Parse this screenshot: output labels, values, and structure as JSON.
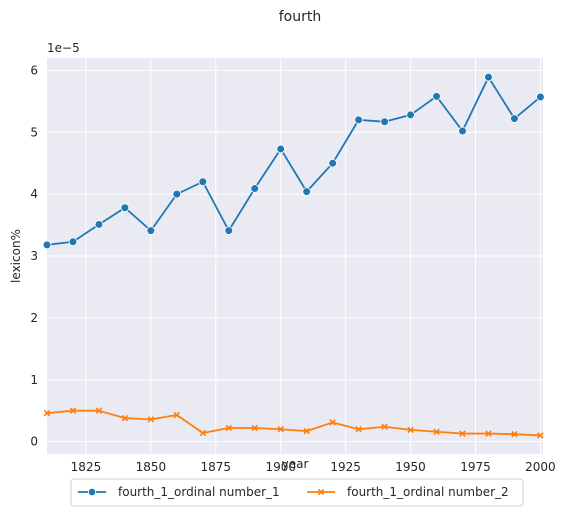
{
  "chart_data": {
    "type": "line",
    "title": "fourth",
    "xlabel": "year",
    "ylabel": "lexicon%",
    "y_multiplier_label": "1e−5",
    "x": [
      1810,
      1820,
      1830,
      1840,
      1850,
      1860,
      1870,
      1880,
      1890,
      1900,
      1910,
      1920,
      1930,
      1940,
      1950,
      1960,
      1970,
      1980,
      1990,
      2000
    ],
    "xlim": [
      1810,
      2001
    ],
    "ylim": [
      -0.2,
      6.2
    ],
    "x_ticks": [
      1825,
      1850,
      1875,
      1900,
      1925,
      1950,
      1975,
      2000
    ],
    "y_ticks": [
      0,
      1,
      2,
      3,
      4,
      5,
      6
    ],
    "x_tick_labels": [
      "1825",
      "1850",
      "1875",
      "1900",
      "1925",
      "1950",
      "1975",
      "2000"
    ],
    "y_tick_labels": [
      "0",
      "1",
      "2",
      "3",
      "4",
      "5",
      "6"
    ],
    "grid": true,
    "legend_position": "bottom-center",
    "series": [
      {
        "name": "fourth_1_ordinal number_1",
        "color": "#1f77b4",
        "marker": "circle",
        "values": [
          3.18,
          3.23,
          3.51,
          3.78,
          3.41,
          4.0,
          4.2,
          3.41,
          4.09,
          4.73,
          4.04,
          4.5,
          5.2,
          5.17,
          5.28,
          5.58,
          5.02,
          5.89,
          5.22,
          5.57
        ]
      },
      {
        "name": "fourth_1_ordinal number_2",
        "color": "#ff7f0e",
        "marker": "x",
        "values": [
          0.46,
          0.5,
          0.5,
          0.38,
          0.36,
          0.43,
          0.14,
          0.22,
          0.22,
          0.2,
          0.17,
          0.31,
          0.2,
          0.24,
          0.19,
          0.16,
          0.13,
          0.13,
          0.12,
          0.1
        ]
      }
    ]
  }
}
